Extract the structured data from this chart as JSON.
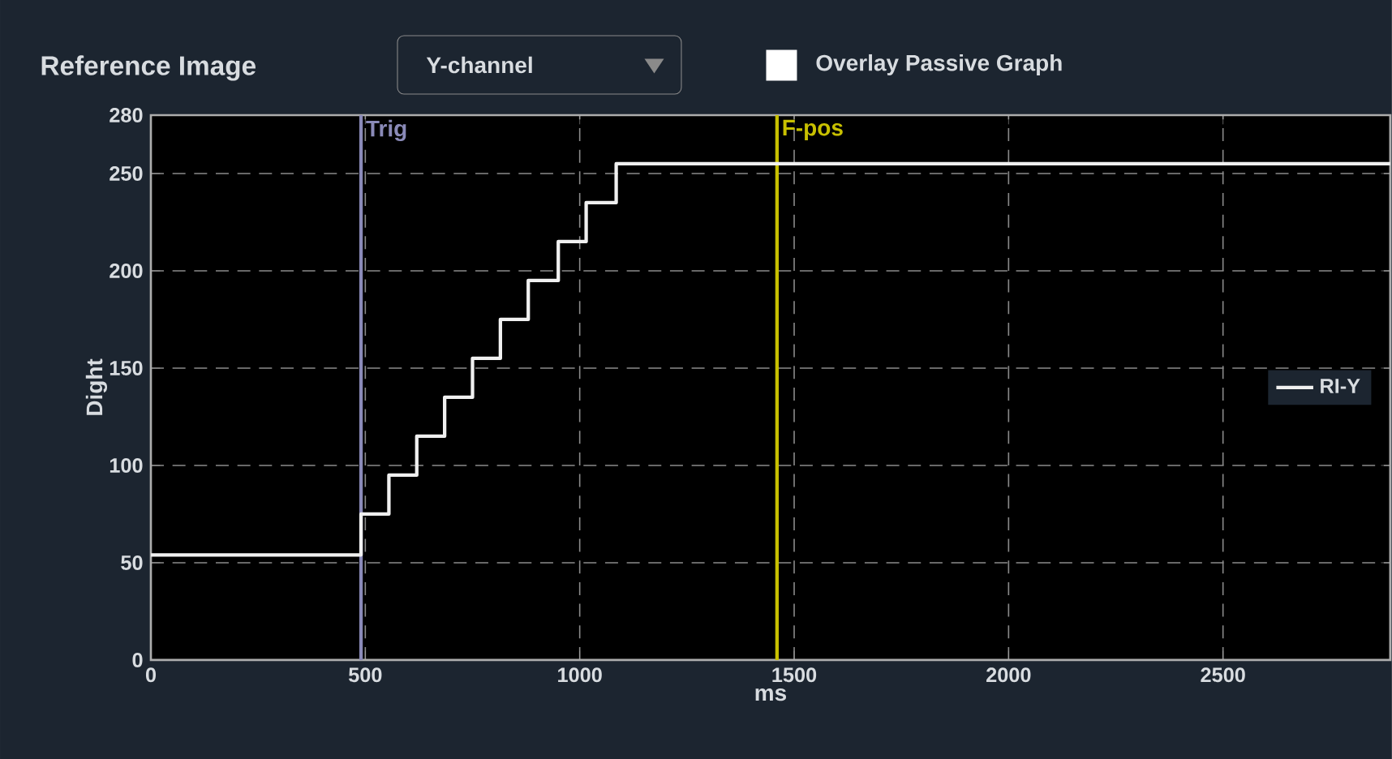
{
  "chart_data": {
    "type": "step",
    "title": "Reference Image",
    "xlabel": "ms",
    "ylabel": "Dight",
    "annotations": [
      "Y-channel",
      "Overlay Passive Graph"
    ],
    "series": [
      {
        "name": "RI-Y",
        "color": "#f0f0f0",
        "x": [
          0,
          490,
          555,
          620,
          685,
          750,
          815,
          880,
          950,
          1015,
          1085,
          2890
        ],
        "values": [
          54,
          75,
          95,
          115,
          135,
          155,
          175,
          195,
          215,
          235,
          255,
          255
        ]
      }
    ],
    "ref_lines": [
      {
        "axis": "x",
        "value": 490,
        "label": "Trig",
        "color": "#8a8ab8"
      },
      {
        "axis": "x",
        "value": 1460,
        "label": "F-pos",
        "color": "#c8c000"
      }
    ],
    "xlim": [
      0,
      2890
    ],
    "ylim": [
      0,
      280
    ],
    "xticks": [
      0,
      500,
      1000,
      1500,
      2000,
      2500
    ],
    "yticks": [
      0,
      50,
      100,
      150,
      200,
      250,
      280
    ],
    "grid": true,
    "legend": "right",
    "line_style": "solid"
  }
}
